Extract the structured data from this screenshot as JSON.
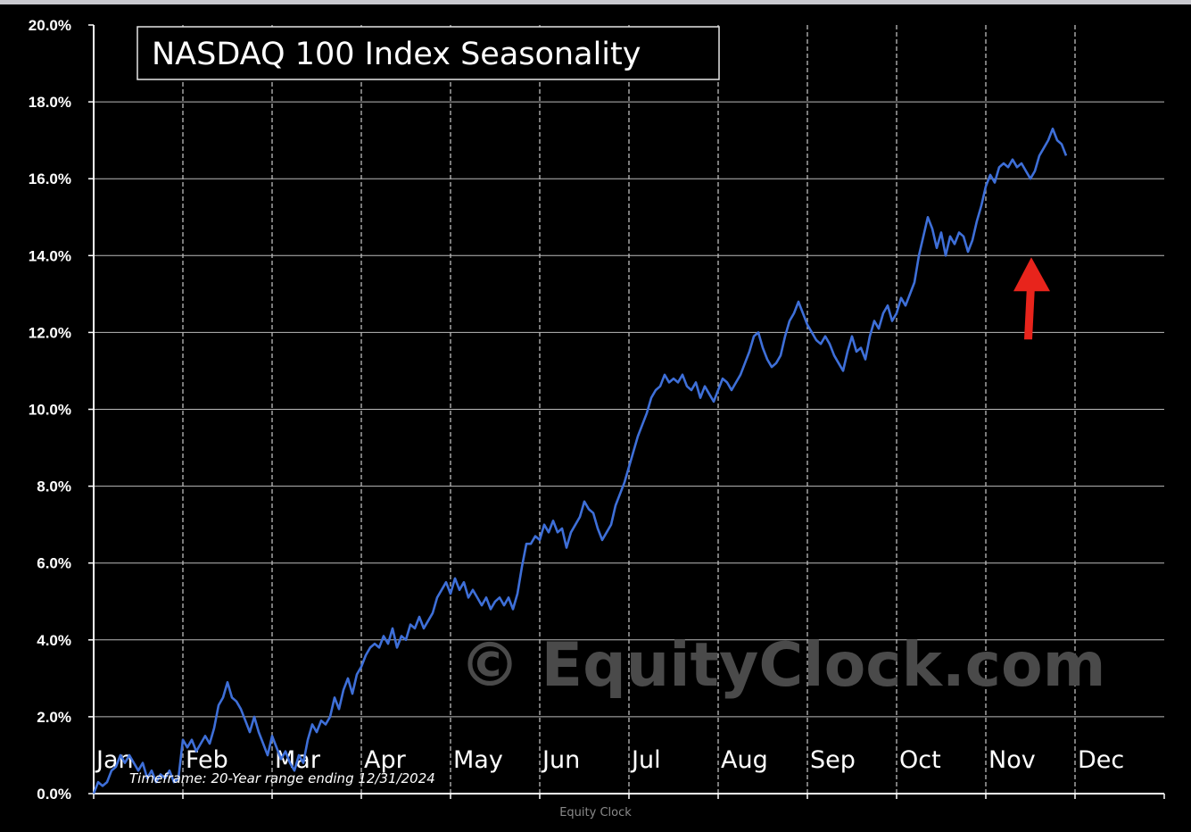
{
  "caption": "Equity Clock",
  "watermark": "© EquityClock.com",
  "colors": {
    "background": "#000000",
    "line": "#3e6fd8",
    "arrow": "#e8241c",
    "grid": "#bbbbbb",
    "watermark": "#4a4a4a"
  },
  "chart_data": {
    "type": "line",
    "title": "NASDAQ 100 Index Seasonality",
    "note": "Timeframe: 20-Year range ending 12/31/2024",
    "xlabel": "",
    "ylabel": "",
    "ylim": [
      0,
      20
    ],
    "xlim": [
      0,
      12
    ],
    "y_ticks": [
      "0.0%",
      "2.0%",
      "4.0%",
      "6.0%",
      "8.0%",
      "10.0%",
      "12.0%",
      "14.0%",
      "16.0%",
      "18.0%",
      "20.0%"
    ],
    "months": [
      "Jan",
      "Feb",
      "Mar",
      "Apr",
      "May",
      "Jun",
      "Jul",
      "Aug",
      "Sep",
      "Oct",
      "Nov",
      "Dec"
    ],
    "grid": "vertical dashed at month boundaries, horizontal solid",
    "annotation": {
      "type": "arrow",
      "points_to_month": 10.5,
      "points_to_value": 14.0,
      "description": "red arrow under mid-November dip"
    },
    "series": [
      {
        "values": [
          [
            0.0,
            0.0
          ],
          [
            0.05,
            0.3
          ],
          [
            0.1,
            0.2
          ],
          [
            0.15,
            0.3
          ],
          [
            0.2,
            0.6
          ],
          [
            0.25,
            0.7
          ],
          [
            0.3,
            1.0
          ],
          [
            0.35,
            0.8
          ],
          [
            0.4,
            1.0
          ],
          [
            0.45,
            0.8
          ],
          [
            0.5,
            0.6
          ],
          [
            0.55,
            0.8
          ],
          [
            0.6,
            0.4
          ],
          [
            0.65,
            0.6
          ],
          [
            0.7,
            0.3
          ],
          [
            0.75,
            0.5
          ],
          [
            0.8,
            0.4
          ],
          [
            0.85,
            0.6
          ],
          [
            0.9,
            0.3
          ],
          [
            0.95,
            0.4
          ],
          [
            1.0,
            1.4
          ],
          [
            1.05,
            1.2
          ],
          [
            1.1,
            1.4
          ],
          [
            1.15,
            1.1
          ],
          [
            1.2,
            1.3
          ],
          [
            1.25,
            1.5
          ],
          [
            1.3,
            1.3
          ],
          [
            1.35,
            1.7
          ],
          [
            1.4,
            2.3
          ],
          [
            1.45,
            2.5
          ],
          [
            1.5,
            2.9
          ],
          [
            1.55,
            2.5
          ],
          [
            1.6,
            2.4
          ],
          [
            1.65,
            2.2
          ],
          [
            1.7,
            1.9
          ],
          [
            1.75,
            1.6
          ],
          [
            1.8,
            2.0
          ],
          [
            1.85,
            1.6
          ],
          [
            1.9,
            1.3
          ],
          [
            1.95,
            1.0
          ],
          [
            2.0,
            1.5
          ],
          [
            2.05,
            1.2
          ],
          [
            2.1,
            0.9
          ],
          [
            2.15,
            1.1
          ],
          [
            2.2,
            0.8
          ],
          [
            2.25,
            0.6
          ],
          [
            2.3,
            1.0
          ],
          [
            2.35,
            0.8
          ],
          [
            2.4,
            1.4
          ],
          [
            2.45,
            1.8
          ],
          [
            2.5,
            1.6
          ],
          [
            2.55,
            1.9
          ],
          [
            2.6,
            1.8
          ],
          [
            2.65,
            2.0
          ],
          [
            2.7,
            2.5
          ],
          [
            2.75,
            2.2
          ],
          [
            2.8,
            2.7
          ],
          [
            2.85,
            3.0
          ],
          [
            2.9,
            2.6
          ],
          [
            2.95,
            3.1
          ],
          [
            3.0,
            3.3
          ],
          [
            3.05,
            3.6
          ],
          [
            3.1,
            3.8
          ],
          [
            3.15,
            3.9
          ],
          [
            3.2,
            3.8
          ],
          [
            3.25,
            4.1
          ],
          [
            3.3,
            3.9
          ],
          [
            3.35,
            4.3
          ],
          [
            3.4,
            3.8
          ],
          [
            3.45,
            4.1
          ],
          [
            3.5,
            4.0
          ],
          [
            3.55,
            4.4
          ],
          [
            3.6,
            4.3
          ],
          [
            3.65,
            4.6
          ],
          [
            3.7,
            4.3
          ],
          [
            3.75,
            4.5
          ],
          [
            3.8,
            4.7
          ],
          [
            3.85,
            5.1
          ],
          [
            3.9,
            5.3
          ],
          [
            3.95,
            5.5
          ],
          [
            4.0,
            5.2
          ],
          [
            4.05,
            5.6
          ],
          [
            4.1,
            5.3
          ],
          [
            4.15,
            5.5
          ],
          [
            4.2,
            5.1
          ],
          [
            4.25,
            5.3
          ],
          [
            4.3,
            5.1
          ],
          [
            4.35,
            4.9
          ],
          [
            4.4,
            5.1
          ],
          [
            4.45,
            4.8
          ],
          [
            4.5,
            5.0
          ],
          [
            4.55,
            5.1
          ],
          [
            4.6,
            4.9
          ],
          [
            4.65,
            5.1
          ],
          [
            4.7,
            4.8
          ],
          [
            4.75,
            5.2
          ],
          [
            4.8,
            5.9
          ],
          [
            4.85,
            6.5
          ],
          [
            4.9,
            6.5
          ],
          [
            4.95,
            6.7
          ],
          [
            5.0,
            6.6
          ],
          [
            5.05,
            7.0
          ],
          [
            5.1,
            6.8
          ],
          [
            5.15,
            7.1
          ],
          [
            5.2,
            6.8
          ],
          [
            5.25,
            6.9
          ],
          [
            5.3,
            6.4
          ],
          [
            5.35,
            6.8
          ],
          [
            5.4,
            7.0
          ],
          [
            5.45,
            7.2
          ],
          [
            5.5,
            7.6
          ],
          [
            5.55,
            7.4
          ],
          [
            5.6,
            7.3
          ],
          [
            5.65,
            6.9
          ],
          [
            5.7,
            6.6
          ],
          [
            5.75,
            6.8
          ],
          [
            5.8,
            7.0
          ],
          [
            5.85,
            7.5
          ],
          [
            5.9,
            7.8
          ],
          [
            5.95,
            8.1
          ],
          [
            6.0,
            8.5
          ],
          [
            6.05,
            8.9
          ],
          [
            6.1,
            9.3
          ],
          [
            6.15,
            9.6
          ],
          [
            6.2,
            9.9
          ],
          [
            6.25,
            10.3
          ],
          [
            6.3,
            10.5
          ],
          [
            6.35,
            10.6
          ],
          [
            6.4,
            10.9
          ],
          [
            6.45,
            10.7
          ],
          [
            6.5,
            10.8
          ],
          [
            6.55,
            10.7
          ],
          [
            6.6,
            10.9
          ],
          [
            6.65,
            10.6
          ],
          [
            6.7,
            10.5
          ],
          [
            6.75,
            10.7
          ],
          [
            6.8,
            10.3
          ],
          [
            6.85,
            10.6
          ],
          [
            6.9,
            10.4
          ],
          [
            6.95,
            10.2
          ],
          [
            7.0,
            10.5
          ],
          [
            7.05,
            10.8
          ],
          [
            7.1,
            10.7
          ],
          [
            7.15,
            10.5
          ],
          [
            7.2,
            10.7
          ],
          [
            7.25,
            10.9
          ],
          [
            7.3,
            11.2
          ],
          [
            7.35,
            11.5
          ],
          [
            7.4,
            11.9
          ],
          [
            7.45,
            12.0
          ],
          [
            7.5,
            11.6
          ],
          [
            7.55,
            11.3
          ],
          [
            7.6,
            11.1
          ],
          [
            7.65,
            11.2
          ],
          [
            7.7,
            11.4
          ],
          [
            7.75,
            11.9
          ],
          [
            7.8,
            12.3
          ],
          [
            7.85,
            12.5
          ],
          [
            7.9,
            12.8
          ],
          [
            7.95,
            12.5
          ],
          [
            8.0,
            12.2
          ],
          [
            8.05,
            12.0
          ],
          [
            8.1,
            11.8
          ],
          [
            8.15,
            11.7
          ],
          [
            8.2,
            11.9
          ],
          [
            8.25,
            11.7
          ],
          [
            8.3,
            11.4
          ],
          [
            8.35,
            11.2
          ],
          [
            8.4,
            11.0
          ],
          [
            8.45,
            11.5
          ],
          [
            8.5,
            11.9
          ],
          [
            8.55,
            11.5
          ],
          [
            8.6,
            11.6
          ],
          [
            8.65,
            11.3
          ],
          [
            8.7,
            11.9
          ],
          [
            8.75,
            12.3
          ],
          [
            8.8,
            12.1
          ],
          [
            8.85,
            12.5
          ],
          [
            8.9,
            12.7
          ],
          [
            8.95,
            12.3
          ],
          [
            9.0,
            12.5
          ],
          [
            9.05,
            12.9
          ],
          [
            9.1,
            12.7
          ],
          [
            9.15,
            13.0
          ],
          [
            9.2,
            13.3
          ],
          [
            9.25,
            14.0
          ],
          [
            9.3,
            14.5
          ],
          [
            9.35,
            15.0
          ],
          [
            9.4,
            14.7
          ],
          [
            9.45,
            14.2
          ],
          [
            9.5,
            14.6
          ],
          [
            9.55,
            14.0
          ],
          [
            9.6,
            14.5
          ],
          [
            9.65,
            14.3
          ],
          [
            9.7,
            14.6
          ],
          [
            9.75,
            14.5
          ],
          [
            9.8,
            14.1
          ],
          [
            9.85,
            14.4
          ],
          [
            9.9,
            14.9
          ],
          [
            9.95,
            15.3
          ],
          [
            10.0,
            15.8
          ],
          [
            10.05,
            16.1
          ],
          [
            10.1,
            15.9
          ],
          [
            10.15,
            16.3
          ],
          [
            10.2,
            16.4
          ],
          [
            10.25,
            16.3
          ],
          [
            10.3,
            16.5
          ],
          [
            10.35,
            16.3
          ],
          [
            10.4,
            16.4
          ],
          [
            10.45,
            16.2
          ],
          [
            10.5,
            16.0
          ],
          [
            10.55,
            16.2
          ],
          [
            10.6,
            16.6
          ],
          [
            10.65,
            16.8
          ],
          [
            10.7,
            17.0
          ],
          [
            10.75,
            17.3
          ],
          [
            10.8,
            17.0
          ],
          [
            10.85,
            16.9
          ],
          [
            10.9,
            16.6
          ]
        ]
      }
    ]
  }
}
